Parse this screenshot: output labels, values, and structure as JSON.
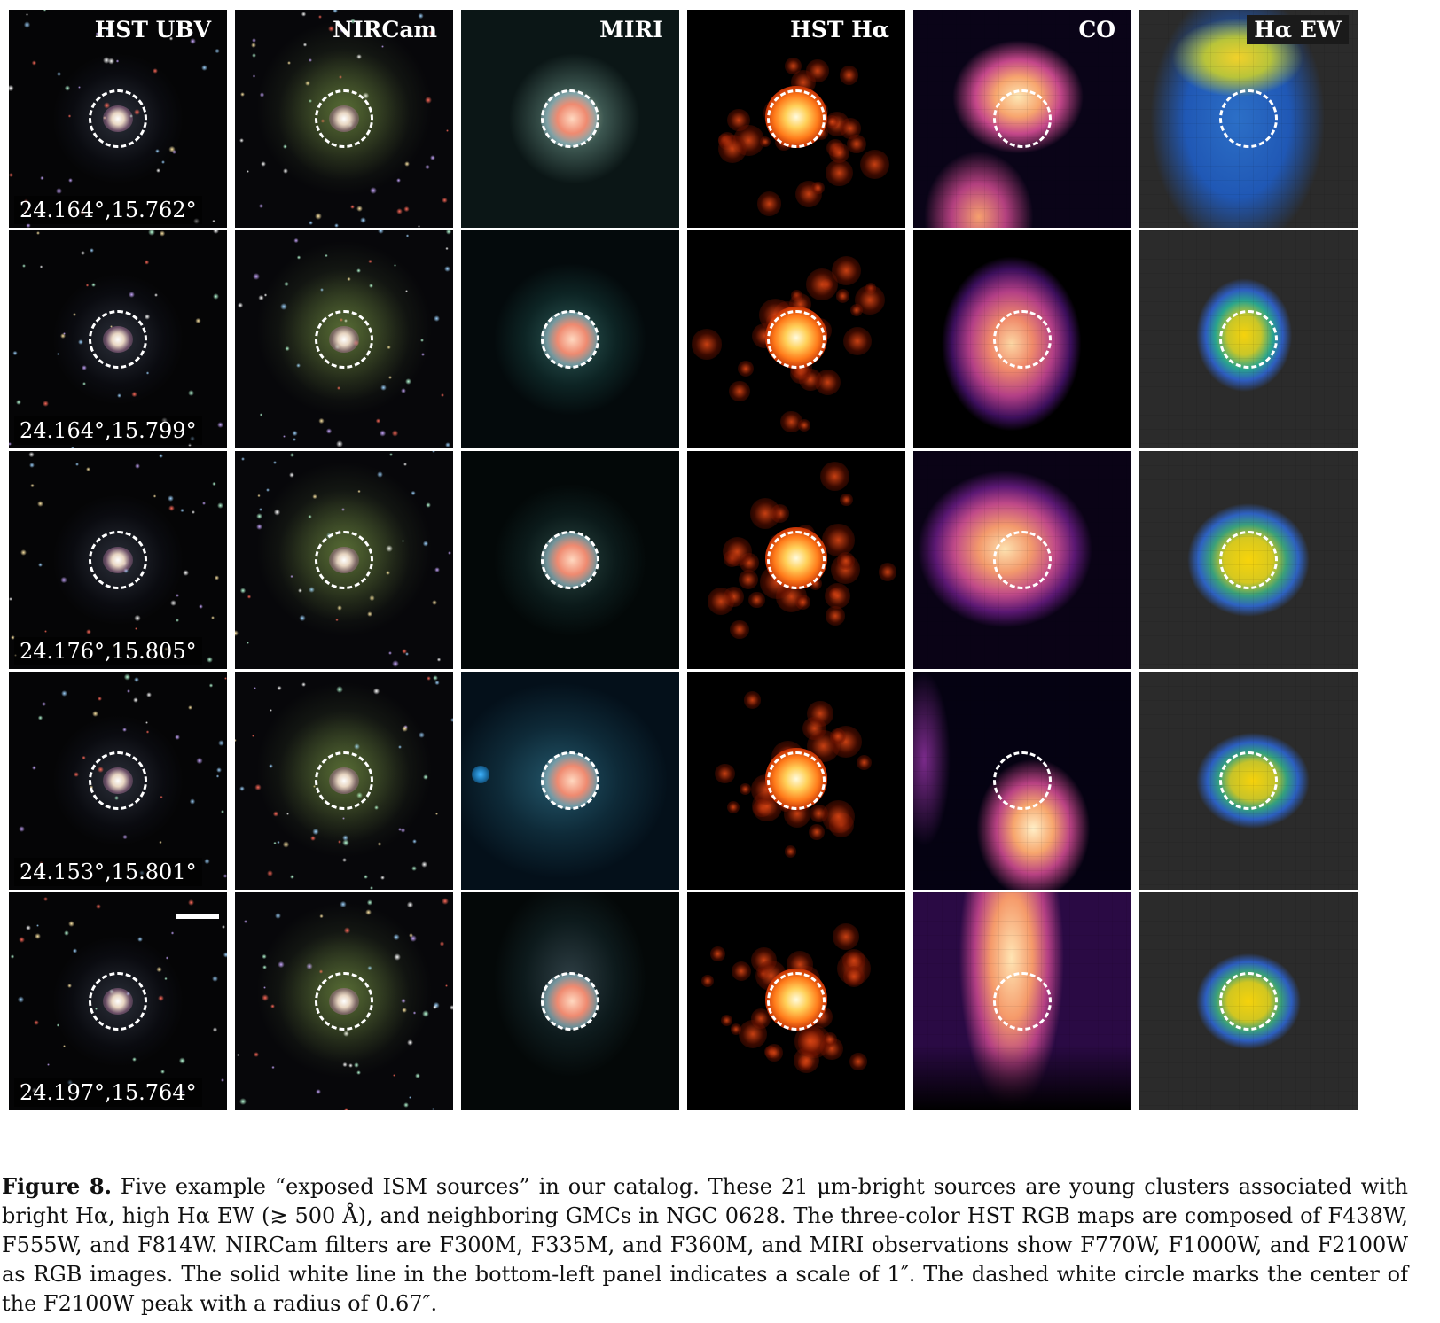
{
  "figure": {
    "columns": [
      "HST UBV",
      "NIRCam",
      "MIRI",
      "HST Hα",
      "CO",
      "Hα EW"
    ],
    "rows": [
      {
        "coord": "24.164°,15.762°"
      },
      {
        "coord": "24.164°,15.799°"
      },
      {
        "coord": "24.176°,15.805°"
      },
      {
        "coord": "24.153°,15.801°"
      },
      {
        "coord": "24.197°,15.764°"
      }
    ]
  },
  "caption": {
    "label": "Figure 8.",
    "text": " Five example “exposed ISM sources” in our catalog. These 21 μm-bright sources are young clusters associated with bright Hα, high Hα EW (≳ 500 Å), and neighboring GMCs in NGC 0628. The three-color HST RGB maps are composed of F438W, F555W, and F814W. NIRCam filters are F300M, F335M, and F360M, and MIRI observations show F770W, F1000W, and F2100W as RGB images. The solid white line in the bottom-left panel indicates a scale of 1″. The dashed white circle marks the center of the F2100W peak with a radius of 0.67″."
  }
}
